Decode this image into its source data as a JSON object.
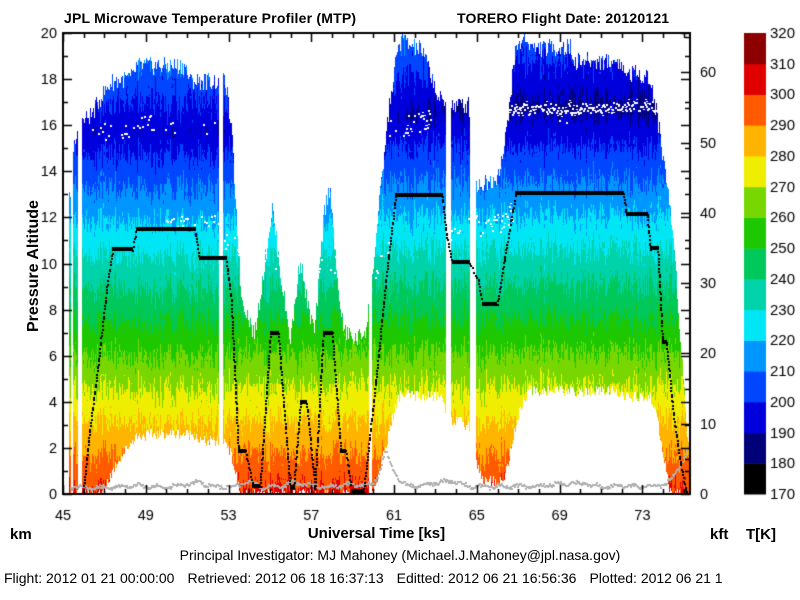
{
  "header": {
    "title_left": "JPL Microwave Temperature Profiler (MTP)",
    "title_right": "TORERO  Flight Date: 20120121"
  },
  "footer": {
    "line1": "Principal Investigator: MJ Mahoney (Michael.J.Mahoney@jpl.nasa.gov)",
    "flight": "Flight: 2012 01 21 00:00:00",
    "retrieved": "Retrieved: 2012 06 18 16:37:13",
    "editted": "Editted: 2012 06 21 16:56:36",
    "plotted": "Plotted: 2012 06 21 1"
  },
  "chart_data": {
    "type": "heatmap",
    "title": "JPL Microwave Temperature Profiler (MTP) - TORERO Flight 20120121",
    "xlabel": "Universal Time [ks]",
    "ylabel": "Pressure Altitude",
    "y_unit_left": "km",
    "y_unit_right": "kft",
    "x_range": [
      45,
      75.3
    ],
    "y_range_km": [
      0,
      20
    ],
    "x_major_ticks": [
      45,
      49,
      53,
      57,
      61,
      65,
      69,
      73
    ],
    "x_minor_step": 1,
    "y_major_ticks": [
      0,
      2,
      4,
      6,
      8,
      10,
      12,
      14,
      16,
      18,
      20
    ],
    "y_minor_step": 1,
    "kft_major_ticks": [
      0,
      10,
      20,
      30,
      40,
      50,
      60
    ],
    "kft_minor_ticks": [
      5,
      15,
      25,
      35,
      45,
      55,
      65
    ],
    "kft_per_km": 3.28084,
    "colorbar": {
      "title": "T[K]",
      "min": 170,
      "max": 320,
      "step": 10,
      "labels": [
        170,
        180,
        190,
        200,
        210,
        220,
        230,
        240,
        250,
        260,
        270,
        280,
        290,
        300,
        310,
        320
      ],
      "band_colors": [
        "#000000",
        "#000078",
        "#0000dc",
        "#0046ff",
        "#0096ff",
        "#00e6f5",
        "#00d2aa",
        "#00c85a",
        "#1ec800",
        "#78d700",
        "#f0ee00",
        "#ffb400",
        "#ff5a00",
        "#e10000",
        "#8c0000"
      ]
    },
    "atmosphere": {
      "surface_temp_K": 301.5,
      "tropopause_km_early": 15.75,
      "tropopause_km_late": 16.8,
      "trop_transition_t": [
        57,
        64.5
      ],
      "tropopause_min_K_early": 193,
      "tropopause_min_K_late": 188,
      "stratosphere_lapse_K_per_km": 5.5
    },
    "flight_track_t_km": [
      [
        45.95,
        0.1
      ],
      [
        46.2,
        2.3
      ],
      [
        46.65,
        5.5
      ],
      [
        47.1,
        9.0
      ],
      [
        47.38,
        10.63
      ],
      [
        48.35,
        10.63
      ],
      [
        48.52,
        11.5
      ],
      [
        51.35,
        11.5
      ],
      [
        51.55,
        10.25
      ],
      [
        52.85,
        10.25
      ],
      [
        53.1,
        8.5
      ],
      [
        53.45,
        1.88
      ],
      [
        53.8,
        1.88
      ],
      [
        54.15,
        0.35
      ],
      [
        54.5,
        0.35
      ],
      [
        55.0,
        7.0
      ],
      [
        55.38,
        7.0
      ],
      [
        55.95,
        0.3
      ],
      [
        56.12,
        0.3
      ],
      [
        56.45,
        3.97
      ],
      [
        56.75,
        3.97
      ],
      [
        57.15,
        0.28
      ],
      [
        57.55,
        7.0
      ],
      [
        57.98,
        7.0
      ],
      [
        58.4,
        1.88
      ],
      [
        58.65,
        1.88
      ],
      [
        58.92,
        0.12
      ],
      [
        59.5,
        0.12
      ],
      [
        60.1,
        5.0
      ],
      [
        60.6,
        9.5
      ],
      [
        61.05,
        12.97
      ],
      [
        63.3,
        12.97
      ],
      [
        63.5,
        11.3
      ],
      [
        63.78,
        10.05
      ],
      [
        64.6,
        10.05
      ],
      [
        65.05,
        9.3
      ],
      [
        65.25,
        8.23
      ],
      [
        65.95,
        8.23
      ],
      [
        66.3,
        10.2
      ],
      [
        66.85,
        13.05
      ],
      [
        72.05,
        13.05
      ],
      [
        72.2,
        12.15
      ],
      [
        73.2,
        12.15
      ],
      [
        73.35,
        10.68
      ],
      [
        73.72,
        10.68
      ],
      [
        73.95,
        6.6
      ],
      [
        74.12,
        6.6
      ],
      [
        74.5,
        3.3
      ],
      [
        74.8,
        1.4
      ],
      [
        75.1,
        0.08
      ]
    ],
    "envelope_top_t_km": [
      [
        45.25,
        12.5
      ],
      [
        45.55,
        15.2
      ],
      [
        45.95,
        16.2
      ],
      [
        46.4,
        16.5
      ],
      [
        46.85,
        17.3
      ],
      [
        47.35,
        17.9
      ],
      [
        48.35,
        18.1
      ],
      [
        48.55,
        18.6
      ],
      [
        50.9,
        18.6
      ],
      [
        51.1,
        17.95
      ],
      [
        52.85,
        17.9
      ],
      [
        53.15,
        15.5
      ],
      [
        53.6,
        8.6
      ],
      [
        54.25,
        6.9
      ],
      [
        54.75,
        10.2
      ],
      [
        55.1,
        12.45
      ],
      [
        55.55,
        9.2
      ],
      [
        55.98,
        6.7
      ],
      [
        56.45,
        10.3
      ],
      [
        56.8,
        8.2
      ],
      [
        57.15,
        7.0
      ],
      [
        57.6,
        12.3
      ],
      [
        57.9,
        13.4
      ],
      [
        58.2,
        9.5
      ],
      [
        58.55,
        7.1
      ],
      [
        59.15,
        6.7
      ],
      [
        59.65,
        7.2
      ],
      [
        60.15,
        11.5
      ],
      [
        60.7,
        16.5
      ],
      [
        61.15,
        19.3
      ],
      [
        61.4,
        19.9
      ],
      [
        61.65,
        19.5
      ],
      [
        62.3,
        19.3
      ],
      [
        62.75,
        18.3
      ],
      [
        63.1,
        17.2
      ],
      [
        63.5,
        16.9
      ],
      [
        64.6,
        16.9
      ],
      [
        65.0,
        13.4
      ],
      [
        65.9,
        13.7
      ],
      [
        66.3,
        14.9
      ],
      [
        66.85,
        19.3
      ],
      [
        67.3,
        19.85
      ],
      [
        67.7,
        19.35
      ],
      [
        69.5,
        19.4
      ],
      [
        69.7,
        18.8
      ],
      [
        71.9,
        18.8
      ],
      [
        72.1,
        18.3
      ],
      [
        73.2,
        18.2
      ],
      [
        73.45,
        17.6
      ],
      [
        73.7,
        16.4
      ],
      [
        74.1,
        14.0
      ],
      [
        74.5,
        11.0
      ],
      [
        74.85,
        6.5
      ],
      [
        75.1,
        3.2
      ],
      [
        75.3,
        1.5
      ]
    ],
    "envelope_bottom_t_km": [
      [
        45.25,
        0
      ],
      [
        46.8,
        0
      ],
      [
        47.6,
        1.4
      ],
      [
        48.5,
        2.55
      ],
      [
        50.1,
        2.65
      ],
      [
        51.4,
        2.6
      ],
      [
        51.6,
        2.3
      ],
      [
        52.9,
        2.3
      ],
      [
        53.2,
        1.4
      ],
      [
        53.55,
        0
      ],
      [
        59.95,
        0
      ],
      [
        60.45,
        1.6
      ],
      [
        60.9,
        3.3
      ],
      [
        61.25,
        4.3
      ],
      [
        63.3,
        4.25
      ],
      [
        63.6,
        3.3
      ],
      [
        64.6,
        3.0
      ],
      [
        65.0,
        1.3
      ],
      [
        65.3,
        0.6
      ],
      [
        66.3,
        0.6
      ],
      [
        66.65,
        2.1
      ],
      [
        67.1,
        3.8
      ],
      [
        67.5,
        4.5
      ],
      [
        71.9,
        4.45
      ],
      [
        72.3,
        4.2
      ],
      [
        73.4,
        4.2
      ],
      [
        73.75,
        3.0
      ],
      [
        74.1,
        1.2
      ],
      [
        74.35,
        0
      ],
      [
        75.3,
        0
      ]
    ],
    "data_gaps_t": [
      [
        45.35,
        45.48
      ],
      [
        45.7,
        45.88
      ],
      [
        52.52,
        52.72
      ],
      [
        59.78,
        59.92
      ],
      [
        63.5,
        63.75
      ],
      [
        64.65,
        64.95
      ]
    ],
    "tropopause_marks": [
      [
        46.4,
        49.3,
        15.6,
        16.15,
        0.45,
        0.5
      ],
      [
        49.3,
        52.4,
        16.1,
        15.9,
        0.35,
        0.18
      ],
      [
        49.9,
        52.5,
        11.75,
        11.85,
        0.3,
        0.5
      ],
      [
        52.5,
        54.7,
        11.1,
        10.4,
        0.4,
        0.45
      ],
      [
        54.7,
        58.4,
        10.1,
        9.9,
        0.45,
        0.3
      ],
      [
        59.5,
        60.8,
        8.8,
        10.8,
        0.5,
        0.35
      ],
      [
        60.0,
        61.2,
        14.8,
        16.2,
        0.5,
        0.35
      ],
      [
        61.3,
        62.75,
        15.9,
        16.3,
        0.45,
        0.6
      ],
      [
        63.4,
        65.4,
        11.2,
        11.8,
        0.5,
        0.45
      ],
      [
        65.4,
        66.7,
        11.4,
        12.2,
        0.45,
        0.6
      ],
      [
        66.3,
        75.25,
        16.7,
        16.85,
        0.22,
        0.92
      ],
      [
        67.2,
        70.0,
        16.25,
        16.35,
        0.3,
        0.15
      ]
    ],
    "surface_trace_t_km": [
      [
        45.3,
        0.3
      ],
      [
        47.0,
        0.25
      ],
      [
        48.5,
        0.35
      ],
      [
        50.0,
        0.3
      ],
      [
        51.5,
        0.5
      ],
      [
        52.5,
        0.3
      ],
      [
        53.4,
        0.35
      ],
      [
        53.8,
        0.55
      ],
      [
        54.6,
        0.3
      ],
      [
        55.5,
        0.35
      ],
      [
        56.2,
        0.5
      ],
      [
        57.0,
        0.35
      ],
      [
        57.8,
        0.3
      ],
      [
        58.6,
        0.4
      ],
      [
        59.9,
        0.4
      ],
      [
        60.2,
        0.8
      ],
      [
        60.55,
        1.85
      ],
      [
        60.9,
        1.1
      ],
      [
        61.3,
        0.45
      ],
      [
        62.0,
        0.35
      ],
      [
        63.2,
        0.5
      ],
      [
        63.8,
        0.55
      ],
      [
        64.5,
        0.35
      ],
      [
        65.5,
        0.3
      ],
      [
        66.5,
        0.35
      ],
      [
        67.5,
        0.3
      ],
      [
        68.5,
        0.4
      ],
      [
        69.5,
        0.45
      ],
      [
        70.2,
        0.45
      ],
      [
        71.0,
        0.3
      ],
      [
        72.0,
        0.35
      ],
      [
        73.0,
        0.3
      ],
      [
        74.0,
        0.4
      ],
      [
        74.4,
        0.7
      ],
      [
        74.8,
        1.3
      ],
      [
        75.25,
        2.1
      ]
    ],
    "colors": {
      "background": "#ffffff",
      "axis": "#000000",
      "flight_track": "#000000",
      "surface_trace": "#b0b0b0",
      "tropopause_marks": "#ffffff"
    },
    "legend_position": "right-colorbar",
    "grid": false
  }
}
